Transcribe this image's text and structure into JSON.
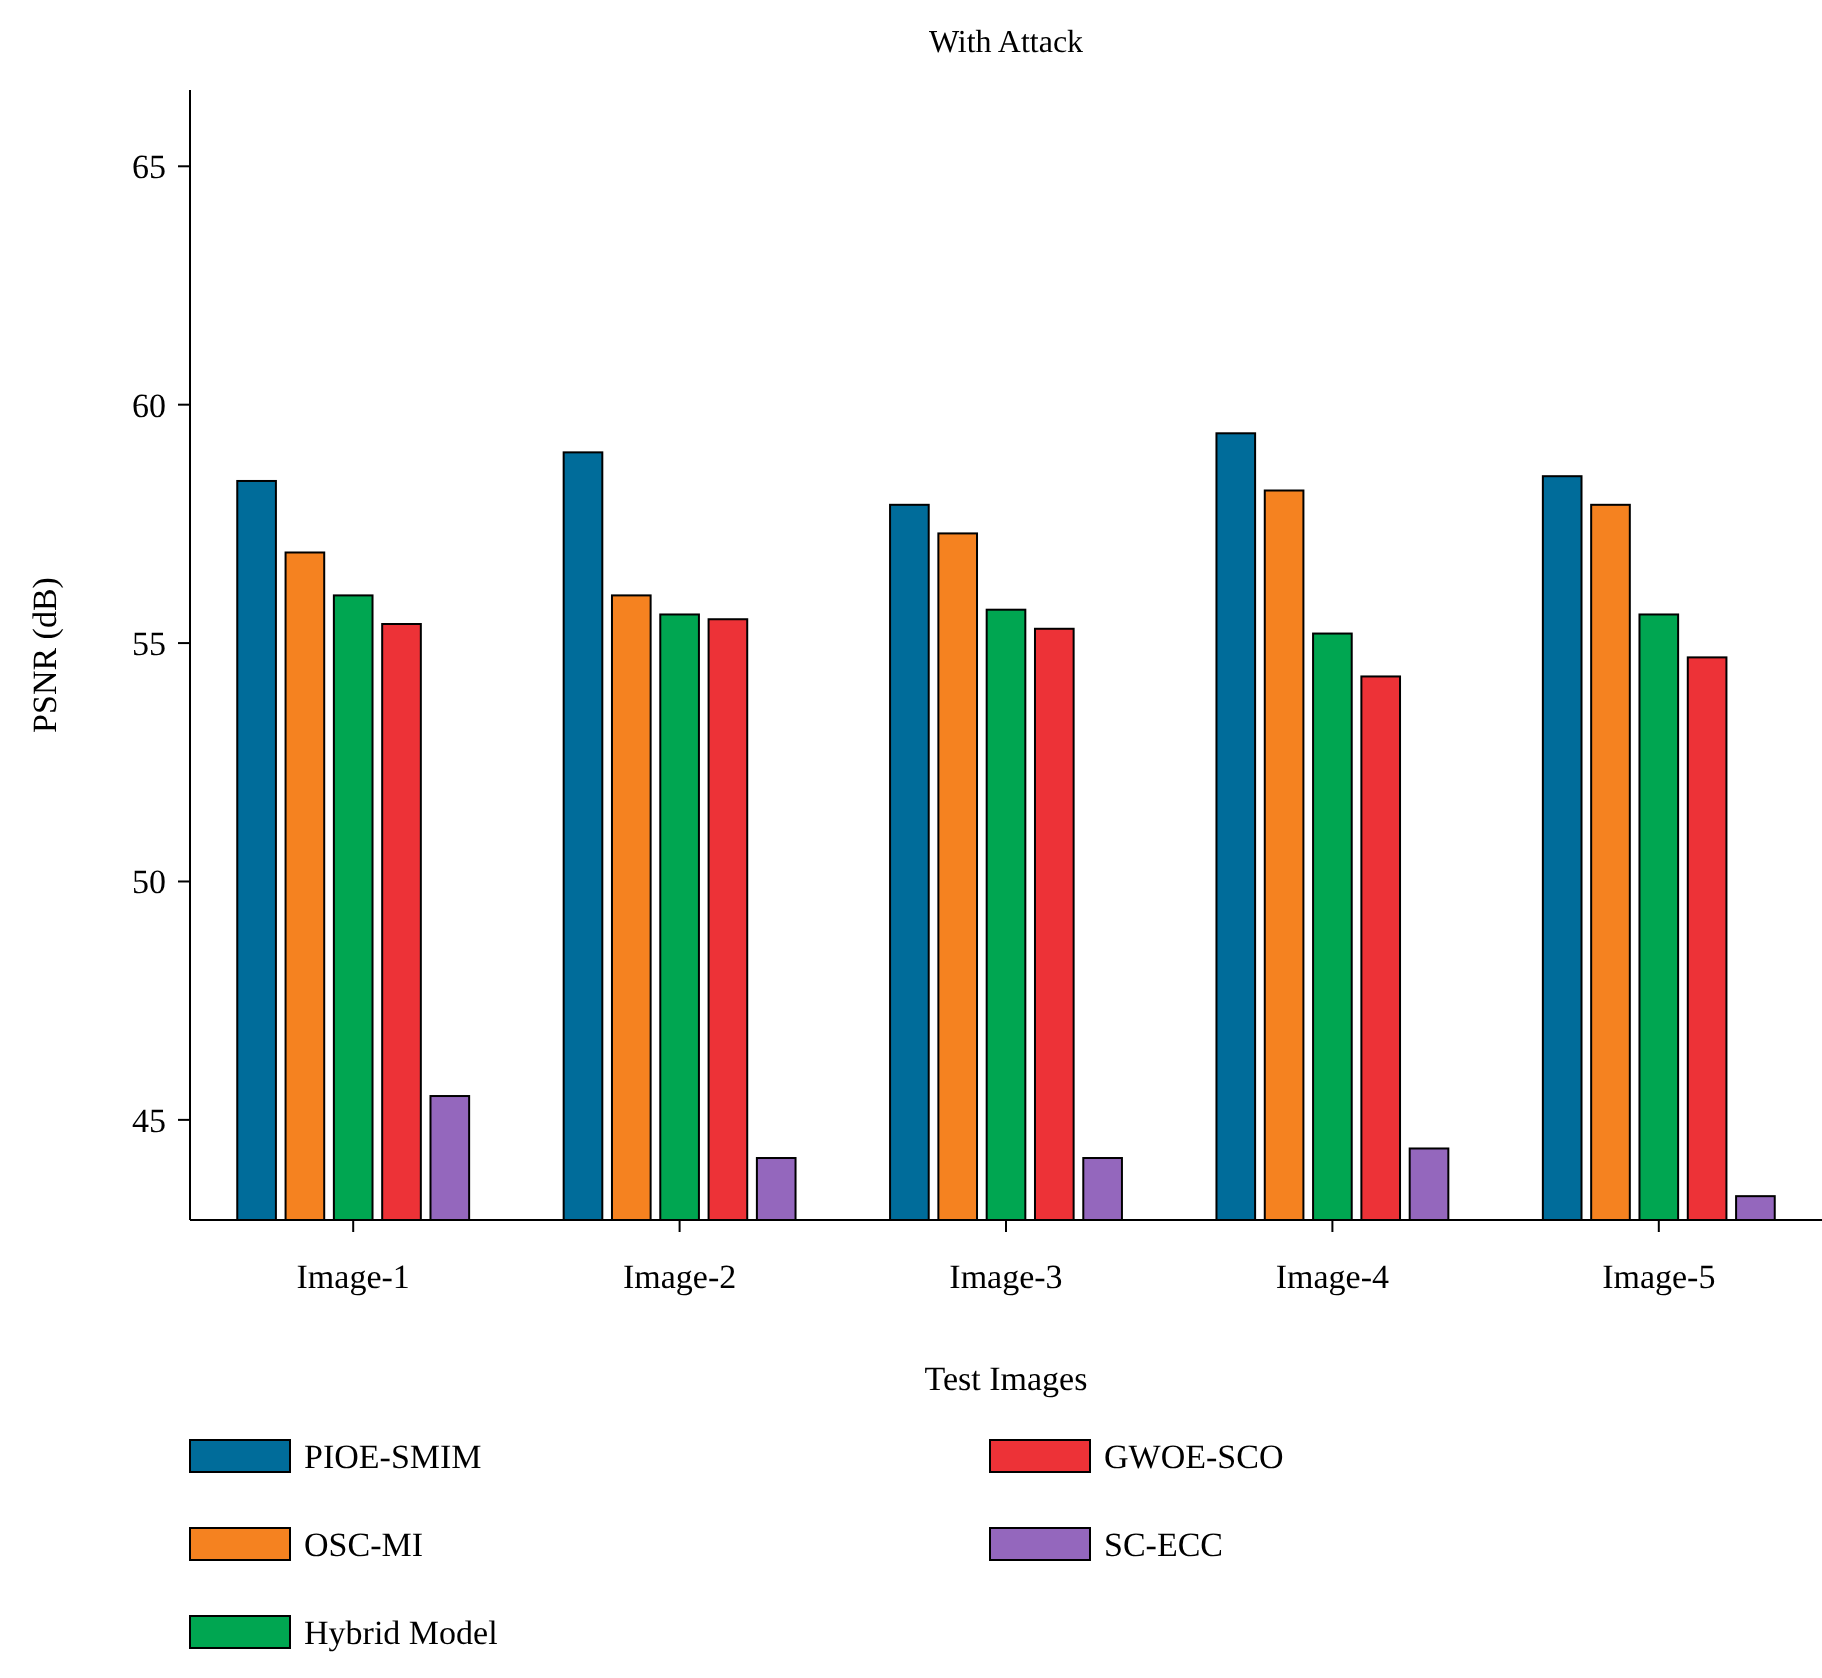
{
  "chart_data": {
    "type": "bar",
    "title": "With Attack",
    "xlabel": "Test Images",
    "ylabel": "PSNR (dB)",
    "categories": [
      "Image-1",
      "Image-2",
      "Image-3",
      "Image-4",
      "Image-5"
    ],
    "series": [
      {
        "name": "PIOE-SMIM",
        "color": "#006c9a",
        "values": [
          58.4,
          59.0,
          57.9,
          59.4,
          58.5
        ]
      },
      {
        "name": "OSC-MI",
        "color": "#f58220",
        "values": [
          56.9,
          56.0,
          57.3,
          58.2,
          57.9
        ]
      },
      {
        "name": "Hybrid Model",
        "color": "#00a651",
        "values": [
          56.0,
          55.6,
          55.7,
          55.2,
          55.6
        ]
      },
      {
        "name": "GWOE-SCO",
        "color": "#ed3237",
        "values": [
          55.4,
          55.5,
          55.3,
          54.3,
          54.7
        ]
      },
      {
        "name": "SC-ECC",
        "color": "#9467bd",
        "values": [
          45.5,
          44.2,
          44.2,
          44.4,
          43.4
        ]
      }
    ],
    "ylim": [
      42.9,
      66.6
    ],
    "yticks": [
      45,
      50,
      55,
      60,
      65
    ],
    "grid": false,
    "legend": "bottom"
  }
}
